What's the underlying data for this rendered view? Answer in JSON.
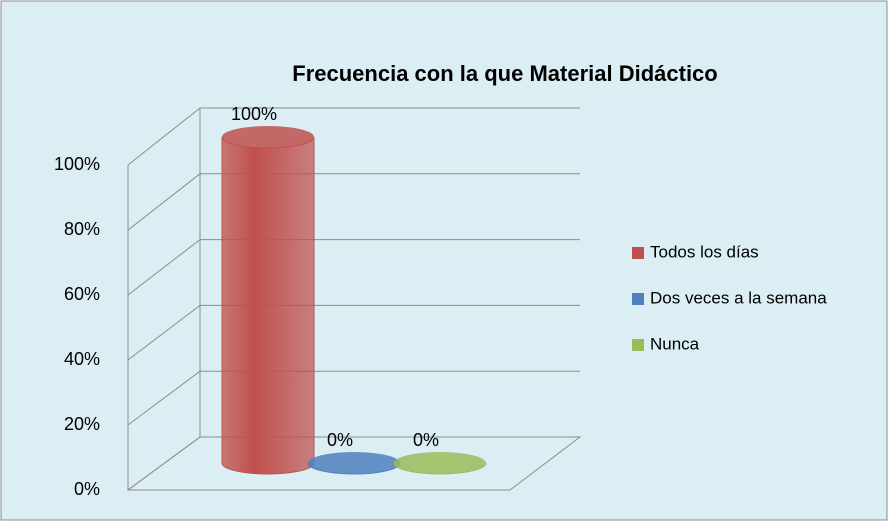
{
  "chart_data": {
    "type": "bar3d-cylinder",
    "title": "Frecuencia con la que Material Didáctico",
    "series": [
      {
        "name": "Todos los días",
        "color": "#c0504d",
        "values": [
          100
        ],
        "value_labels": [
          "100%"
        ]
      },
      {
        "name": "Dos veces a la semana",
        "color": "#4f81bd",
        "values": [
          0
        ],
        "value_labels": [
          "0%"
        ]
      },
      {
        "name": "Nunca",
        "color": "#9bbb59",
        "values": [
          0
        ],
        "value_labels": [
          "0%"
        ]
      }
    ],
    "ylim": [
      0,
      100
    ],
    "yticks": [
      {
        "value": 0,
        "label": "0%"
      },
      {
        "value": 20,
        "label": "20%"
      },
      {
        "value": 40,
        "label": "40%"
      },
      {
        "value": 60,
        "label": "60%"
      },
      {
        "value": 80,
        "label": "80%"
      },
      {
        "value": 100,
        "label": "100%"
      }
    ],
    "grid": true,
    "legend": "right"
  }
}
